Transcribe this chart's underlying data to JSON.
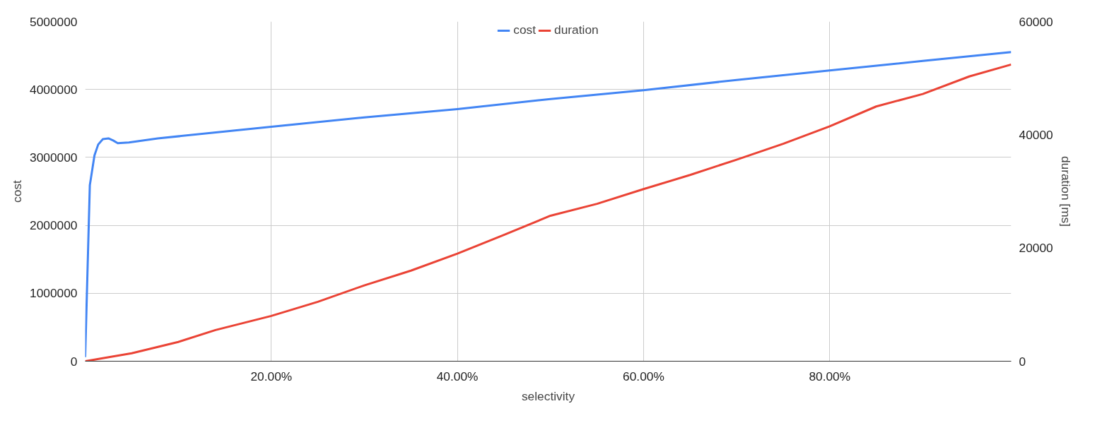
{
  "chart_data": {
    "type": "line",
    "xlabel": "selectivity",
    "ylabel": "cost",
    "y2label": "duration [ms]",
    "xlim": [
      0,
      99.5
    ],
    "xticks": [
      {
        "value": 20,
        "label": "20.00%"
      },
      {
        "value": 40,
        "label": "40.00%"
      },
      {
        "value": 60,
        "label": "60.00%"
      },
      {
        "value": 80,
        "label": "80.00%"
      }
    ],
    "ylim": [
      0,
      5000000
    ],
    "yticks": [
      0,
      1000000,
      2000000,
      3000000,
      4000000,
      5000000
    ],
    "y2lim": [
      0,
      60000
    ],
    "y2ticks": [
      0,
      20000,
      40000,
      60000
    ],
    "grid": true,
    "legend": "top",
    "line_style": "solid",
    "series": [
      {
        "name": "cost",
        "color": "#4285f4",
        "x": [
          0,
          0.5,
          1.0,
          1.4,
          1.9,
          2.5,
          3.0,
          3.5,
          4.7,
          7.8,
          20,
          30,
          40,
          50,
          60,
          70,
          80,
          90,
          99.5
        ],
        "values": [
          60000,
          2590000,
          3030000,
          3190000,
          3270000,
          3280000,
          3250000,
          3210000,
          3220000,
          3280000,
          3450000,
          3590000,
          3710000,
          3860000,
          3990000,
          4140000,
          4280000,
          4420000,
          4550000
        ]
      },
      {
        "name": "duration",
        "color": "#ea4335",
        "axis": "y2",
        "x": [
          0,
          5,
          10,
          14,
          20,
          25,
          30,
          35,
          40,
          45,
          50,
          55,
          60,
          65,
          70,
          75,
          80,
          85,
          90,
          95,
          99.5
        ],
        "values": [
          0,
          1400,
          3400,
          5500,
          8000,
          10500,
          13400,
          16000,
          19000,
          22300,
          25700,
          27800,
          30400,
          32900,
          35600,
          38400,
          41500,
          45000,
          47200,
          50300,
          52400
        ]
      }
    ]
  }
}
